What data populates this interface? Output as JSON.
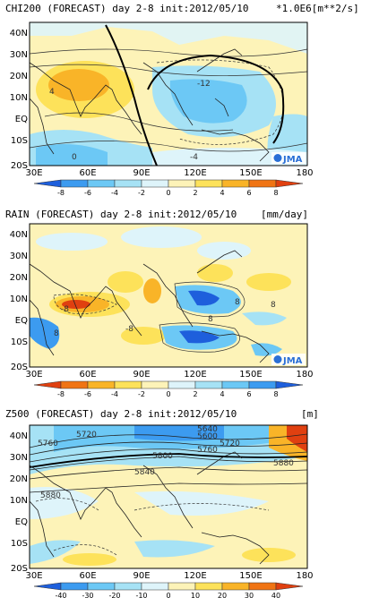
{
  "panels": [
    {
      "id": "chi200",
      "title": "CHI200 (FORECAST) day 2-8 init:2012/05/10",
      "units": "*1.0E6[m**2/s]",
      "lat_labels": [
        "40N",
        "30N",
        "20N",
        "10N",
        "EQ",
        "10S",
        "20S"
      ],
      "lon_labels": [
        "30E",
        "60E",
        "90E",
        "120E",
        "150E",
        "180"
      ],
      "colorbar_labels": [
        "-8",
        "-6",
        "-4",
        "-2",
        "0",
        "2",
        "4",
        "6",
        "8"
      ],
      "colorbar_colors": [
        "#1e5fdc",
        "#3c9bf0",
        "#6cc8f5",
        "#a6e2f5",
        "#def4fa",
        "#fdf3b8",
        "#fde25a",
        "#f9b428",
        "#f07414",
        "#e04010"
      ],
      "contour_labels": [
        "4",
        "-12",
        "0",
        "-4"
      ],
      "logo": "JMA"
    },
    {
      "id": "rain",
      "title": "RAIN (FORECAST) day 2-8 init:2012/05/10",
      "units": "[mm/day]",
      "lat_labels": [
        "40N",
        "30N",
        "20N",
        "10N",
        "EQ",
        "10S",
        "20S"
      ],
      "lon_labels": [
        "30E",
        "60E",
        "90E",
        "120E",
        "150E",
        "180"
      ],
      "colorbar_labels": [
        "-8",
        "-6",
        "-4",
        "-2",
        "0",
        "2",
        "4",
        "6",
        "8"
      ],
      "colorbar_colors": [
        "#e04010",
        "#f07414",
        "#f9b428",
        "#fde25a",
        "#fdf3b8",
        "#def4fa",
        "#a6e2f5",
        "#6cc8f5",
        "#3c9bf0",
        "#1e5fdc"
      ],
      "contour_labels": [
        "8",
        "-8",
        "8",
        "-8",
        "8",
        "8"
      ],
      "logo": "JMA"
    },
    {
      "id": "z500",
      "title": "Z500 (FORECAST) day 2-8 init:2012/05/10",
      "units": "[m]",
      "lat_labels": [
        "40N",
        "30N",
        "20N",
        "10N",
        "EQ",
        "10S",
        "20S"
      ],
      "lon_labels": [
        "30E",
        "60E",
        "90E",
        "120E",
        "150E",
        "180"
      ],
      "colorbar_labels": [
        "-40",
        "-30",
        "-20",
        "-10",
        "0",
        "10",
        "20",
        "30",
        "40"
      ],
      "colorbar_colors": [
        "#1e5fdc",
        "#3c9bf0",
        "#6cc8f5",
        "#a6e2f5",
        "#def4fa",
        "#fdf3b8",
        "#fde25a",
        "#f9b428",
        "#f07414",
        "#e04010"
      ],
      "contour_labels": [
        "5760",
        "5720",
        "5800",
        "5840",
        "5880",
        "5880",
        "5640",
        "5600",
        "5720",
        "5760"
      ],
      "logo": "JMA"
    }
  ]
}
